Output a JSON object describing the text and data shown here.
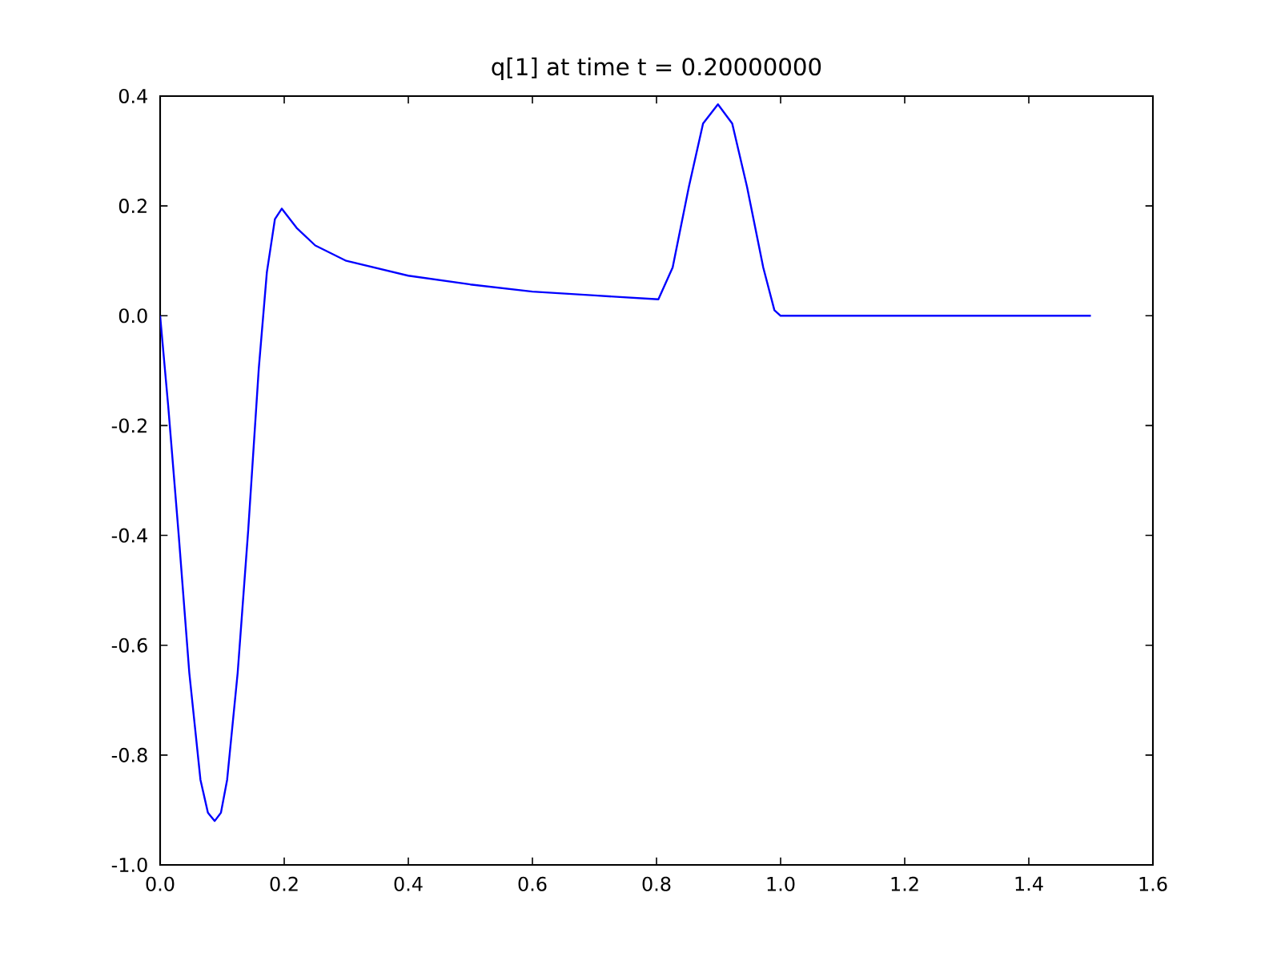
{
  "chart_data": {
    "type": "line",
    "title": "q[1] at time t =     0.20000000",
    "x": [
      0.0,
      0.013,
      0.03,
      0.047,
      0.065,
      0.077,
      0.088,
      0.098,
      0.108,
      0.125,
      0.142,
      0.159,
      0.172,
      0.185,
      0.196,
      0.22,
      0.25,
      0.3,
      0.4,
      0.5,
      0.6,
      0.7,
      0.803,
      0.826,
      0.852,
      0.875,
      0.899,
      0.922,
      0.946,
      0.972,
      0.99,
      1.0,
      1.5
    ],
    "series": [
      {
        "color": "#0000ff",
        "values": [
          0.0,
          -0.164,
          -0.4,
          -0.65,
          -0.845,
          -0.905,
          -0.92,
          -0.905,
          -0.845,
          -0.65,
          -0.39,
          -0.096,
          0.079,
          0.176,
          0.195,
          0.16,
          0.128,
          0.1,
          0.073,
          0.057,
          0.044,
          0.037,
          0.03,
          0.088,
          0.234,
          0.35,
          0.385,
          0.35,
          0.234,
          0.088,
          0.01,
          0.0,
          0.0
        ]
      }
    ],
    "xlim": [
      0.0,
      1.6
    ],
    "xticks": [
      {
        "value": 0,
        "label": "0.0"
      },
      0.2,
      0.4,
      0.6,
      0.8,
      {
        "value": 1,
        "label": "1.0"
      },
      1.2,
      1.4,
      1.6
    ],
    "ylim": [
      -1.0,
      0.4
    ],
    "yticks": [
      {
        "value": -1,
        "label": "-1.0"
      },
      -0.8,
      -0.6,
      -0.4,
      -0.2,
      {
        "value": 0,
        "label": "0.0"
      },
      0.2,
      0.4
    ],
    "marker": "none",
    "line_style": "solid"
  }
}
